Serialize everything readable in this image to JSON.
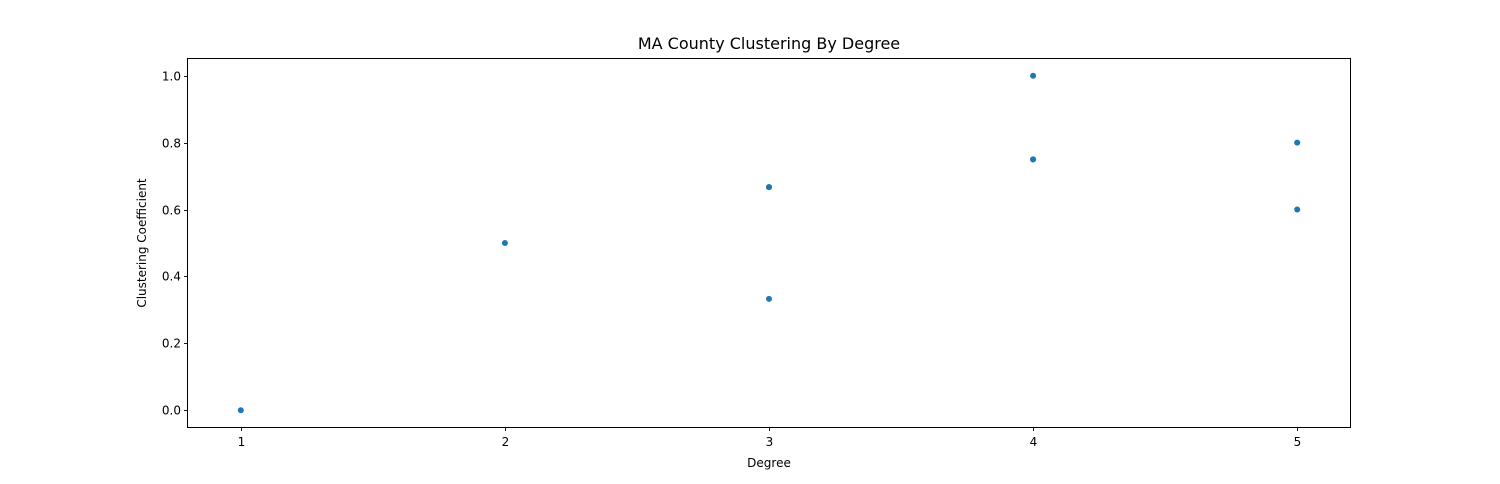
{
  "chart_data": {
    "type": "scatter",
    "title": "MA County Clustering By Degree",
    "xlabel": "Degree",
    "ylabel": "Clustering Coefficient",
    "xlim": [
      0.8,
      5.2
    ],
    "ylim": [
      -0.05,
      1.05
    ],
    "xticks": [
      1,
      2,
      3,
      4,
      5
    ],
    "xtick_labels": [
      "1",
      "2",
      "3",
      "4",
      "5"
    ],
    "yticks": [
      0.0,
      0.2,
      0.4,
      0.6,
      0.8,
      1.0
    ],
    "ytick_labels": [
      "0.0",
      "0.2",
      "0.4",
      "0.6",
      "0.8",
      "1.0"
    ],
    "grid": false,
    "legend": false,
    "marker_color": "#1f77b4",
    "series": [
      {
        "points": [
          {
            "x": 1,
            "y": 0.0
          },
          {
            "x": 2,
            "y": 0.5
          },
          {
            "x": 3,
            "y": 0.333
          },
          {
            "x": 3,
            "y": 0.667
          },
          {
            "x": 3,
            "y": 0.667
          },
          {
            "x": 4,
            "y": 0.75
          },
          {
            "x": 4,
            "y": 0.75
          },
          {
            "x": 4,
            "y": 1.0
          },
          {
            "x": 5,
            "y": 0.6
          },
          {
            "x": 5,
            "y": 0.8
          }
        ]
      }
    ]
  }
}
